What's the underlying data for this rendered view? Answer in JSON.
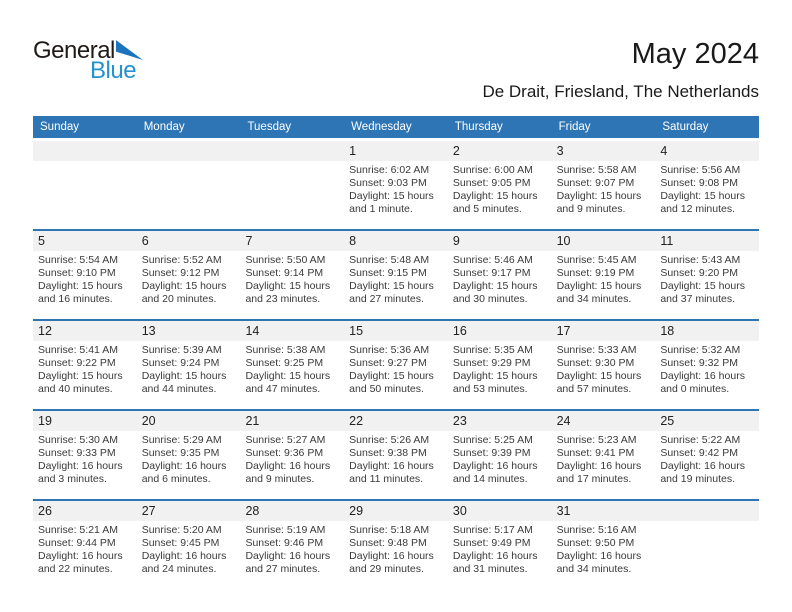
{
  "logo": {
    "general": "General",
    "blue": "Blue",
    "triangle_icon": "blue-flag-triangle"
  },
  "header": {
    "title": "May 2024",
    "subtitle": "De Drait, Friesland, The Netherlands"
  },
  "colors": {
    "header_bar": "#2E75B6",
    "week_separator": "#2E75B6",
    "day_band": "#F1F1F1",
    "logo_blue": "#2591CF",
    "logo_triangle": "#1C75BC"
  },
  "calendar": {
    "day_headers": [
      "Sunday",
      "Monday",
      "Tuesday",
      "Wednesday",
      "Thursday",
      "Friday",
      "Saturday"
    ],
    "weeks": [
      [
        null,
        null,
        null,
        {
          "day": "1",
          "sunrise": "Sunrise: 6:02 AM",
          "sunset": "Sunset: 9:03 PM",
          "daylight": "Daylight: 15 hours and 1 minute."
        },
        {
          "day": "2",
          "sunrise": "Sunrise: 6:00 AM",
          "sunset": "Sunset: 9:05 PM",
          "daylight": "Daylight: 15 hours and 5 minutes."
        },
        {
          "day": "3",
          "sunrise": "Sunrise: 5:58 AM",
          "sunset": "Sunset: 9:07 PM",
          "daylight": "Daylight: 15 hours and 9 minutes."
        },
        {
          "day": "4",
          "sunrise": "Sunrise: 5:56 AM",
          "sunset": "Sunset: 9:08 PM",
          "daylight": "Daylight: 15 hours and 12 minutes."
        }
      ],
      [
        {
          "day": "5",
          "sunrise": "Sunrise: 5:54 AM",
          "sunset": "Sunset: 9:10 PM",
          "daylight": "Daylight: 15 hours and 16 minutes."
        },
        {
          "day": "6",
          "sunrise": "Sunrise: 5:52 AM",
          "sunset": "Sunset: 9:12 PM",
          "daylight": "Daylight: 15 hours and 20 minutes."
        },
        {
          "day": "7",
          "sunrise": "Sunrise: 5:50 AM",
          "sunset": "Sunset: 9:14 PM",
          "daylight": "Daylight: 15 hours and 23 minutes."
        },
        {
          "day": "8",
          "sunrise": "Sunrise: 5:48 AM",
          "sunset": "Sunset: 9:15 PM",
          "daylight": "Daylight: 15 hours and 27 minutes."
        },
        {
          "day": "9",
          "sunrise": "Sunrise: 5:46 AM",
          "sunset": "Sunset: 9:17 PM",
          "daylight": "Daylight: 15 hours and 30 minutes."
        },
        {
          "day": "10",
          "sunrise": "Sunrise: 5:45 AM",
          "sunset": "Sunset: 9:19 PM",
          "daylight": "Daylight: 15 hours and 34 minutes."
        },
        {
          "day": "11",
          "sunrise": "Sunrise: 5:43 AM",
          "sunset": "Sunset: 9:20 PM",
          "daylight": "Daylight: 15 hours and 37 minutes."
        }
      ],
      [
        {
          "day": "12",
          "sunrise": "Sunrise: 5:41 AM",
          "sunset": "Sunset: 9:22 PM",
          "daylight": "Daylight: 15 hours and 40 minutes."
        },
        {
          "day": "13",
          "sunrise": "Sunrise: 5:39 AM",
          "sunset": "Sunset: 9:24 PM",
          "daylight": "Daylight: 15 hours and 44 minutes."
        },
        {
          "day": "14",
          "sunrise": "Sunrise: 5:38 AM",
          "sunset": "Sunset: 9:25 PM",
          "daylight": "Daylight: 15 hours and 47 minutes."
        },
        {
          "day": "15",
          "sunrise": "Sunrise: 5:36 AM",
          "sunset": "Sunset: 9:27 PM",
          "daylight": "Daylight: 15 hours and 50 minutes."
        },
        {
          "day": "16",
          "sunrise": "Sunrise: 5:35 AM",
          "sunset": "Sunset: 9:29 PM",
          "daylight": "Daylight: 15 hours and 53 minutes."
        },
        {
          "day": "17",
          "sunrise": "Sunrise: 5:33 AM",
          "sunset": "Sunset: 9:30 PM",
          "daylight": "Daylight: 15 hours and 57 minutes."
        },
        {
          "day": "18",
          "sunrise": "Sunrise: 5:32 AM",
          "sunset": "Sunset: 9:32 PM",
          "daylight": "Daylight: 16 hours and 0 minutes."
        }
      ],
      [
        {
          "day": "19",
          "sunrise": "Sunrise: 5:30 AM",
          "sunset": "Sunset: 9:33 PM",
          "daylight": "Daylight: 16 hours and 3 minutes."
        },
        {
          "day": "20",
          "sunrise": "Sunrise: 5:29 AM",
          "sunset": "Sunset: 9:35 PM",
          "daylight": "Daylight: 16 hours and 6 minutes."
        },
        {
          "day": "21",
          "sunrise": "Sunrise: 5:27 AM",
          "sunset": "Sunset: 9:36 PM",
          "daylight": "Daylight: 16 hours and 9 minutes."
        },
        {
          "day": "22",
          "sunrise": "Sunrise: 5:26 AM",
          "sunset": "Sunset: 9:38 PM",
          "daylight": "Daylight: 16 hours and 11 minutes."
        },
        {
          "day": "23",
          "sunrise": "Sunrise: 5:25 AM",
          "sunset": "Sunset: 9:39 PM",
          "daylight": "Daylight: 16 hours and 14 minutes."
        },
        {
          "day": "24",
          "sunrise": "Sunrise: 5:23 AM",
          "sunset": "Sunset: 9:41 PM",
          "daylight": "Daylight: 16 hours and 17 minutes."
        },
        {
          "day": "25",
          "sunrise": "Sunrise: 5:22 AM",
          "sunset": "Sunset: 9:42 PM",
          "daylight": "Daylight: 16 hours and 19 minutes."
        }
      ],
      [
        {
          "day": "26",
          "sunrise": "Sunrise: 5:21 AM",
          "sunset": "Sunset: 9:44 PM",
          "daylight": "Daylight: 16 hours and 22 minutes."
        },
        {
          "day": "27",
          "sunrise": "Sunrise: 5:20 AM",
          "sunset": "Sunset: 9:45 PM",
          "daylight": "Daylight: 16 hours and 24 minutes."
        },
        {
          "day": "28",
          "sunrise": "Sunrise: 5:19 AM",
          "sunset": "Sunset: 9:46 PM",
          "daylight": "Daylight: 16 hours and 27 minutes."
        },
        {
          "day": "29",
          "sunrise": "Sunrise: 5:18 AM",
          "sunset": "Sunset: 9:48 PM",
          "daylight": "Daylight: 16 hours and 29 minutes."
        },
        {
          "day": "30",
          "sunrise": "Sunrise: 5:17 AM",
          "sunset": "Sunset: 9:49 PM",
          "daylight": "Daylight: 16 hours and 31 minutes."
        },
        {
          "day": "31",
          "sunrise": "Sunrise: 5:16 AM",
          "sunset": "Sunset: 9:50 PM",
          "daylight": "Daylight: 16 hours and 34 minutes."
        },
        null
      ]
    ]
  }
}
